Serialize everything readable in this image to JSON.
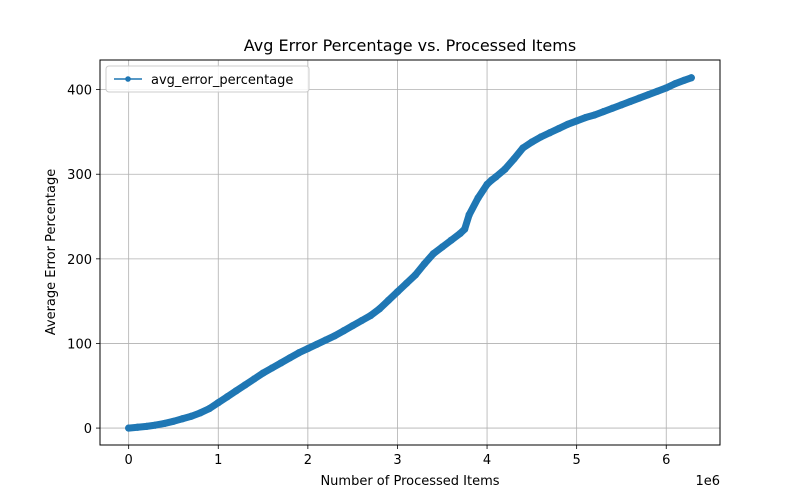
{
  "chart_data": {
    "type": "line",
    "title": "Avg Error Percentage vs. Processed Items",
    "xlabel": "Number of Processed Items",
    "ylabel": "Average Error Percentage",
    "x_offset_label": "1e6",
    "xlim": [
      -0.32,
      6.6
    ],
    "ylim": [
      -20,
      435
    ],
    "x_ticks": [
      0,
      1,
      2,
      3,
      4,
      5,
      6
    ],
    "x_tick_labels": [
      "0",
      "1",
      "2",
      "3",
      "4",
      "5",
      "6"
    ],
    "y_ticks": [
      0,
      100,
      200,
      300,
      400
    ],
    "y_tick_labels": [
      "0",
      "100",
      "200",
      "300",
      "400"
    ],
    "grid": true,
    "legend": {
      "placement": "top-left",
      "entries": [
        "avg_error_percentage"
      ]
    },
    "series": [
      {
        "name": "avg_error_percentage",
        "color": "#1f77b4",
        "marker": "circle",
        "x": [
          0,
          0.1,
          0.2,
          0.3,
          0.4,
          0.5,
          0.6,
          0.7,
          0.8,
          0.9,
          1.0,
          1.1,
          1.2,
          1.3,
          1.4,
          1.5,
          1.6,
          1.7,
          1.8,
          1.9,
          2.0,
          2.1,
          2.2,
          2.3,
          2.4,
          2.5,
          2.6,
          2.7,
          2.8,
          2.9,
          3.0,
          3.1,
          3.2,
          3.3,
          3.4,
          3.5,
          3.6,
          3.7,
          3.75,
          3.8,
          3.9,
          4.0,
          4.05,
          4.1,
          4.2,
          4.3,
          4.4,
          4.5,
          4.6,
          4.7,
          4.8,
          4.9,
          5.0,
          5.1,
          5.2,
          5.3,
          5.4,
          5.5,
          5.6,
          5.7,
          5.8,
          5.9,
          6.0,
          6.1,
          6.2,
          6.28
        ],
        "values": [
          0,
          1,
          2,
          3.5,
          5.5,
          8,
          11,
          14,
          18,
          23,
          30,
          37,
          44,
          51,
          58,
          65,
          71,
          77,
          83,
          89,
          94,
          99,
          104,
          109,
          115,
          121,
          127,
          133,
          141,
          151,
          161,
          171,
          181,
          194,
          206,
          214,
          222,
          230,
          235,
          252,
          272,
          288,
          293,
          297,
          306,
          318,
          331,
          338,
          344,
          349,
          354,
          359,
          363,
          367,
          370,
          374,
          378,
          382,
          386,
          390,
          394,
          398,
          402,
          407,
          411,
          414
        ]
      }
    ]
  }
}
